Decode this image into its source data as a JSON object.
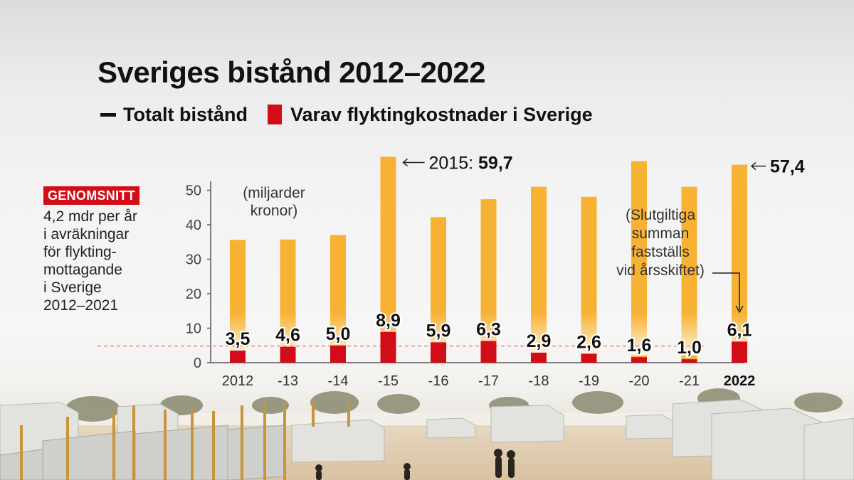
{
  "title": "Sveriges bistånd 2012–2022",
  "legend": {
    "total_label": "Totalt bistånd",
    "refugee_label": "Varav flyktingkostnader i Sverige"
  },
  "average": {
    "badge": "GENOMSNITT",
    "lines": [
      "4,2 mdr per år",
      "i avräkningar",
      "för flykting-",
      "mottagande",
      "i Sverige",
      "2012–2021"
    ]
  },
  "colors": {
    "total": "#f7b233",
    "refugee": "#d20d17",
    "badge": "#d20d17",
    "axis": "#555555",
    "dashed": "#e8736f"
  },
  "chart_data": {
    "type": "bar",
    "categories": [
      "2012",
      "-13",
      "-14",
      "-15",
      "-16",
      "-17",
      "-18",
      "-19",
      "-20",
      "-21",
      "2022"
    ],
    "series": [
      {
        "name": "Totalt bistånd",
        "values": [
          35.6,
          35.7,
          37.0,
          59.7,
          42.2,
          47.4,
          51.0,
          48.1,
          58.4,
          51.0,
          57.4
        ]
      },
      {
        "name": "Varav flyktingkostnader i Sverige",
        "values": [
          3.5,
          4.6,
          5.0,
          8.9,
          5.9,
          6.3,
          2.9,
          2.6,
          1.6,
          1.0,
          6.1
        ]
      }
    ],
    "data_labels": [
      "3,5",
      "4,6",
      "5,0",
      "8,9",
      "5,9",
      "6,3",
      "2,9",
      "2,6",
      "1,6",
      "1,0",
      "6,1"
    ],
    "yticks": [
      0,
      10,
      20,
      30,
      40,
      50
    ],
    "ylim": [
      0,
      60
    ],
    "unit_note": [
      "(miljarder",
      "kronor)"
    ],
    "annotations": {
      "peak_prefix": "2015: ",
      "peak_value": "59,7",
      "last_value": "57,4",
      "final_note": [
        "(Slutgiltiga",
        "summan",
        "fastställs",
        "vid årsskiftet)"
      ]
    },
    "average_line_value": 4.2,
    "legend_position": "top"
  }
}
